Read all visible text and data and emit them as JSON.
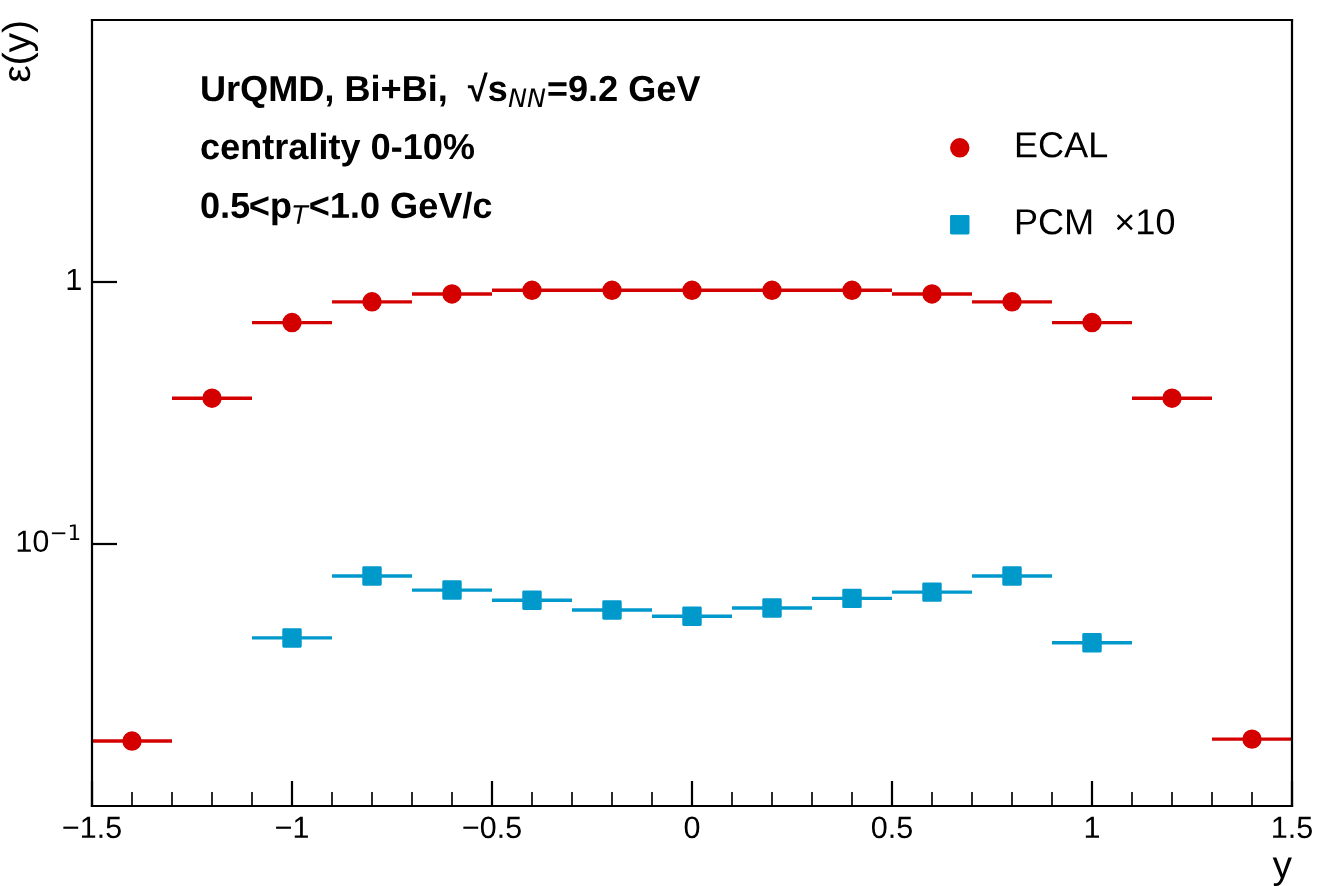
{
  "chart_data": {
    "type": "scatter",
    "ylabel": "ε(y)",
    "xlabel": "y",
    "annotations": [
      "UrQMD, Bi+Bi,  √s$_{NN}$=9.2 GeV",
      "centrality 0-10%",
      "0.5<p$_{T}$<1.0 GeV/c"
    ],
    "series": [
      {
        "name": "ECAL",
        "color": "#d40000",
        "marker": "circle",
        "x": [
          -1.4,
          -1.2,
          -1.0,
          -0.8,
          -0.6,
          -0.4,
          -0.2,
          0.0,
          0.2,
          0.4,
          0.6,
          0.8,
          1.0,
          1.2,
          1.4
        ],
        "values": [
          0.0177,
          0.36,
          0.7,
          0.84,
          0.9,
          0.93,
          0.93,
          0.93,
          0.93,
          0.93,
          0.9,
          0.84,
          0.7,
          0.36,
          0.018
        ],
        "xerrors": [
          0.1,
          0.1,
          0.1,
          0.1,
          0.1,
          0.1,
          0.1,
          0.1,
          0.1,
          0.1,
          0.1,
          0.1,
          0.1,
          0.1,
          0.1
        ]
      },
      {
        "name": "PCM  ×10",
        "color": "#0099cc",
        "marker": "square",
        "x": [
          -1.0,
          -0.8,
          -0.6,
          -0.4,
          -0.2,
          0.0,
          0.2,
          0.4,
          0.6,
          0.8,
          1.0
        ],
        "values": [
          0.0438,
          0.0755,
          0.0667,
          0.061,
          0.056,
          0.053,
          0.057,
          0.062,
          0.0655,
          0.0755,
          0.042
        ],
        "xerrors": [
          0.1,
          0.1,
          0.1,
          0.1,
          0.1,
          0.1,
          0.1,
          0.1,
          0.1,
          0.1,
          0.1
        ]
      }
    ],
    "log": "y",
    "xlim": [
      -1.5,
      1.5
    ],
    "xticks": [
      -1.5,
      -1,
      -0.5,
      0,
      0.5,
      1,
      1.5
    ],
    "ylim": [
      0.01,
      10
    ],
    "yticks": [
      {
        "value": 0.1,
        "label": "10$^{−1}$"
      },
      1
    ],
    "grid": false,
    "legend": "top right"
  }
}
